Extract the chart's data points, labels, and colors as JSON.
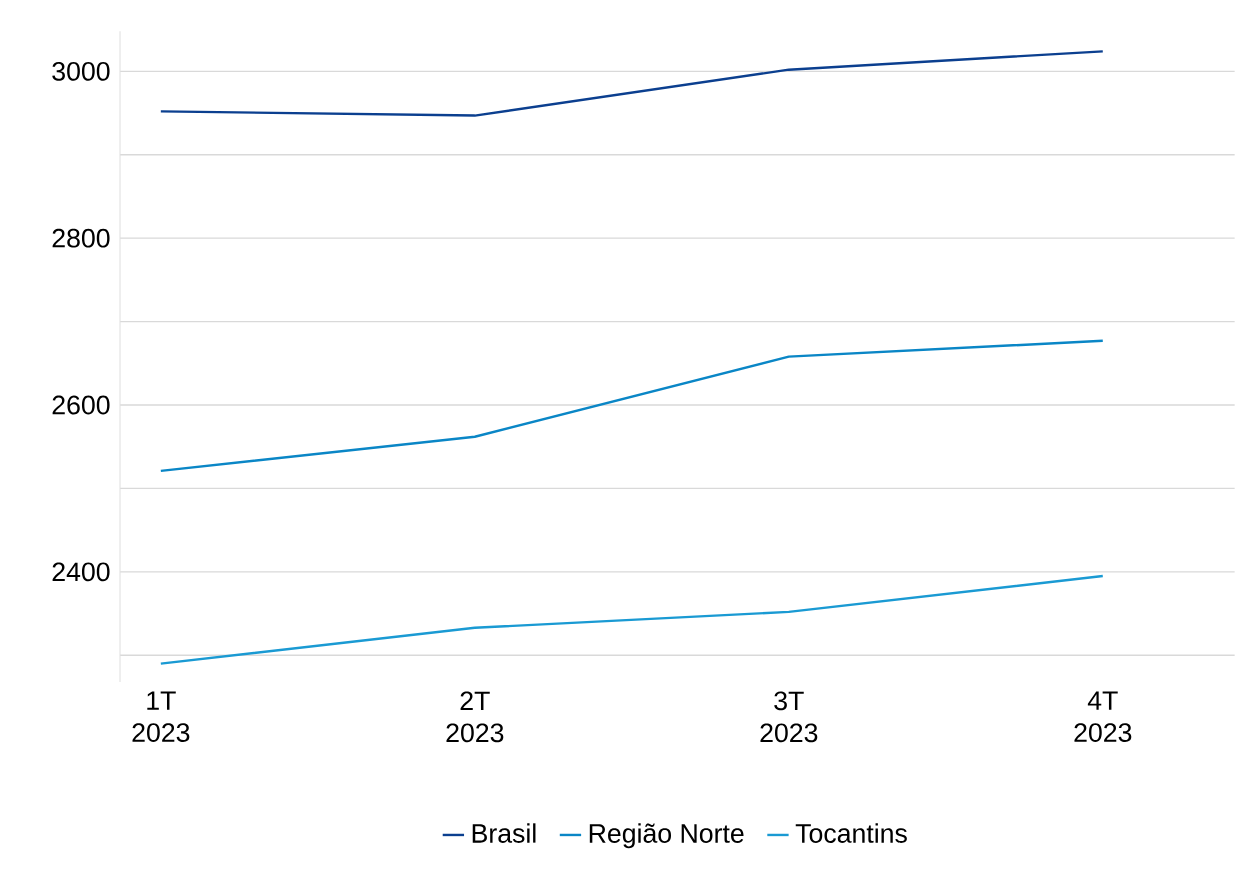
{
  "chart_data": {
    "type": "line",
    "categories": [
      "1T 2023",
      "2T 2023",
      "3T 2023",
      "4T 2023"
    ],
    "series": [
      {
        "name": "Brasil",
        "color": "#0b3f8f",
        "values": [
          2952,
          2947,
          3002,
          3024
        ]
      },
      {
        "name": "Região Norte",
        "color": "#0a86c6",
        "values": [
          2521,
          2562,
          2658,
          2677
        ]
      },
      {
        "name": "Tocantins",
        "color": "#1a9ad3",
        "values": [
          2290,
          2333,
          2352,
          2395
        ]
      }
    ],
    "ylim": [
      2268,
      3048
    ],
    "yticks": [
      {
        "value": 2300,
        "label": null
      },
      2400,
      {
        "value": 2500,
        "label": null
      },
      2600,
      {
        "value": 2700,
        "label": null
      },
      2800,
      {
        "value": 2900,
        "label": null
      },
      3000
    ],
    "grid": "y",
    "legend": "bottom",
    "marker": "none",
    "line_style": "solid"
  }
}
